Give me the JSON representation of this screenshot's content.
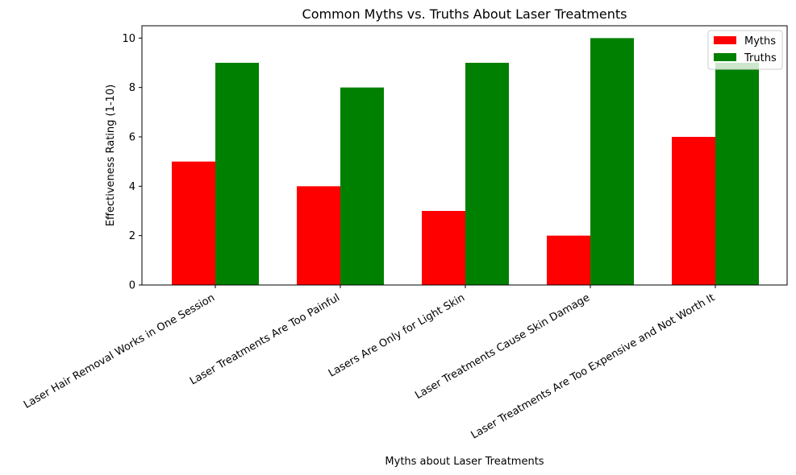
{
  "chart_data": {
    "type": "bar",
    "title": "Common Myths vs. Truths About Laser Treatments",
    "xlabel": "Myths about Laser Treatments",
    "ylabel": "Effectiveness Rating (1-10)",
    "categories": [
      "Laser Hair Removal Works in One Session",
      "Laser Treatments Are Too Painful",
      "Lasers Are Only for Light Skin",
      "Laser Treatments Cause Skin Damage",
      "Laser Treatments Are Too Expensive and Not Worth It"
    ],
    "series": [
      {
        "name": "Myths",
        "values": [
          5,
          4,
          3,
          2,
          6
        ],
        "color": "#ff0000"
      },
      {
        "name": "Truths",
        "values": [
          9,
          8,
          9,
          10,
          9
        ],
        "color": "#008000"
      }
    ],
    "ylim": [
      0,
      10.5
    ],
    "yticks": [
      0,
      2,
      4,
      6,
      8,
      10
    ],
    "grid": false,
    "legend_position": "top-right"
  }
}
